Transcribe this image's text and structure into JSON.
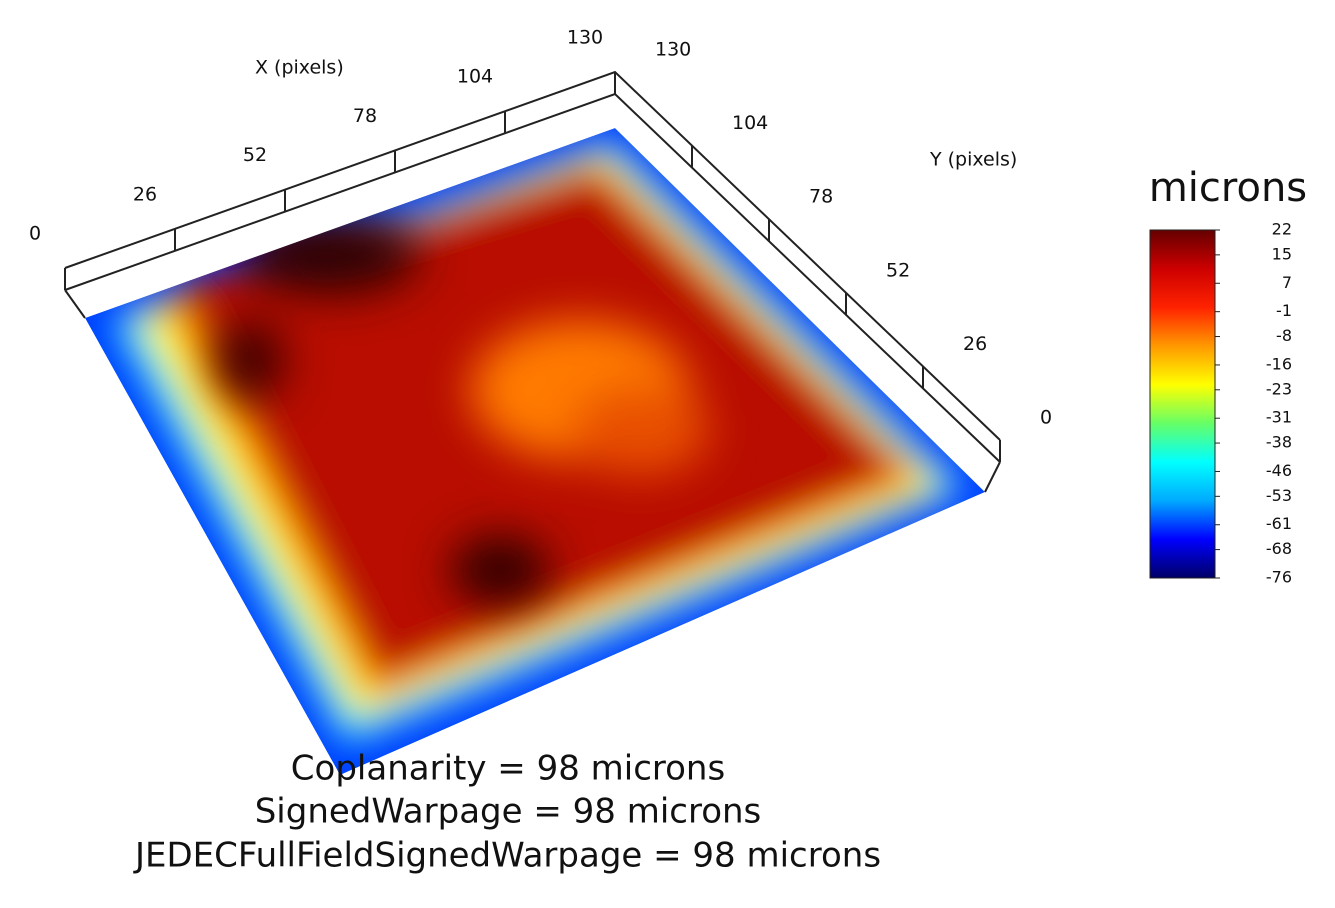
{
  "chart_data": {
    "type": "surface",
    "x_label": "X (pixels)",
    "y_label": "Y (pixels)",
    "xlim": [
      0,
      130
    ],
    "xticks": [
      0,
      26,
      52,
      78,
      104,
      130
    ],
    "ylim": [
      0,
      130
    ],
    "yticks": [
      0,
      26,
      52,
      78,
      104,
      130
    ],
    "colorbar_title": "microns",
    "clim": [
      -76,
      22
    ],
    "cticks": [
      22,
      15,
      7,
      -1,
      -8,
      -16,
      -23,
      -31,
      -38,
      -46,
      -53,
      -61,
      -68,
      -76
    ],
    "colorscale": [
      "#000066",
      "#0000ff",
      "#00aaff",
      "#00ffff",
      "#66ff66",
      "#ffff00",
      "#ff9900",
      "#ff2200",
      "#cc0000",
      "#660000"
    ],
    "annotations": [
      "Coplanarity = 98 microns",
      "SignedWarpage = 98 microns",
      "JEDECFullFieldSignedWarpage = 98 microns"
    ]
  }
}
